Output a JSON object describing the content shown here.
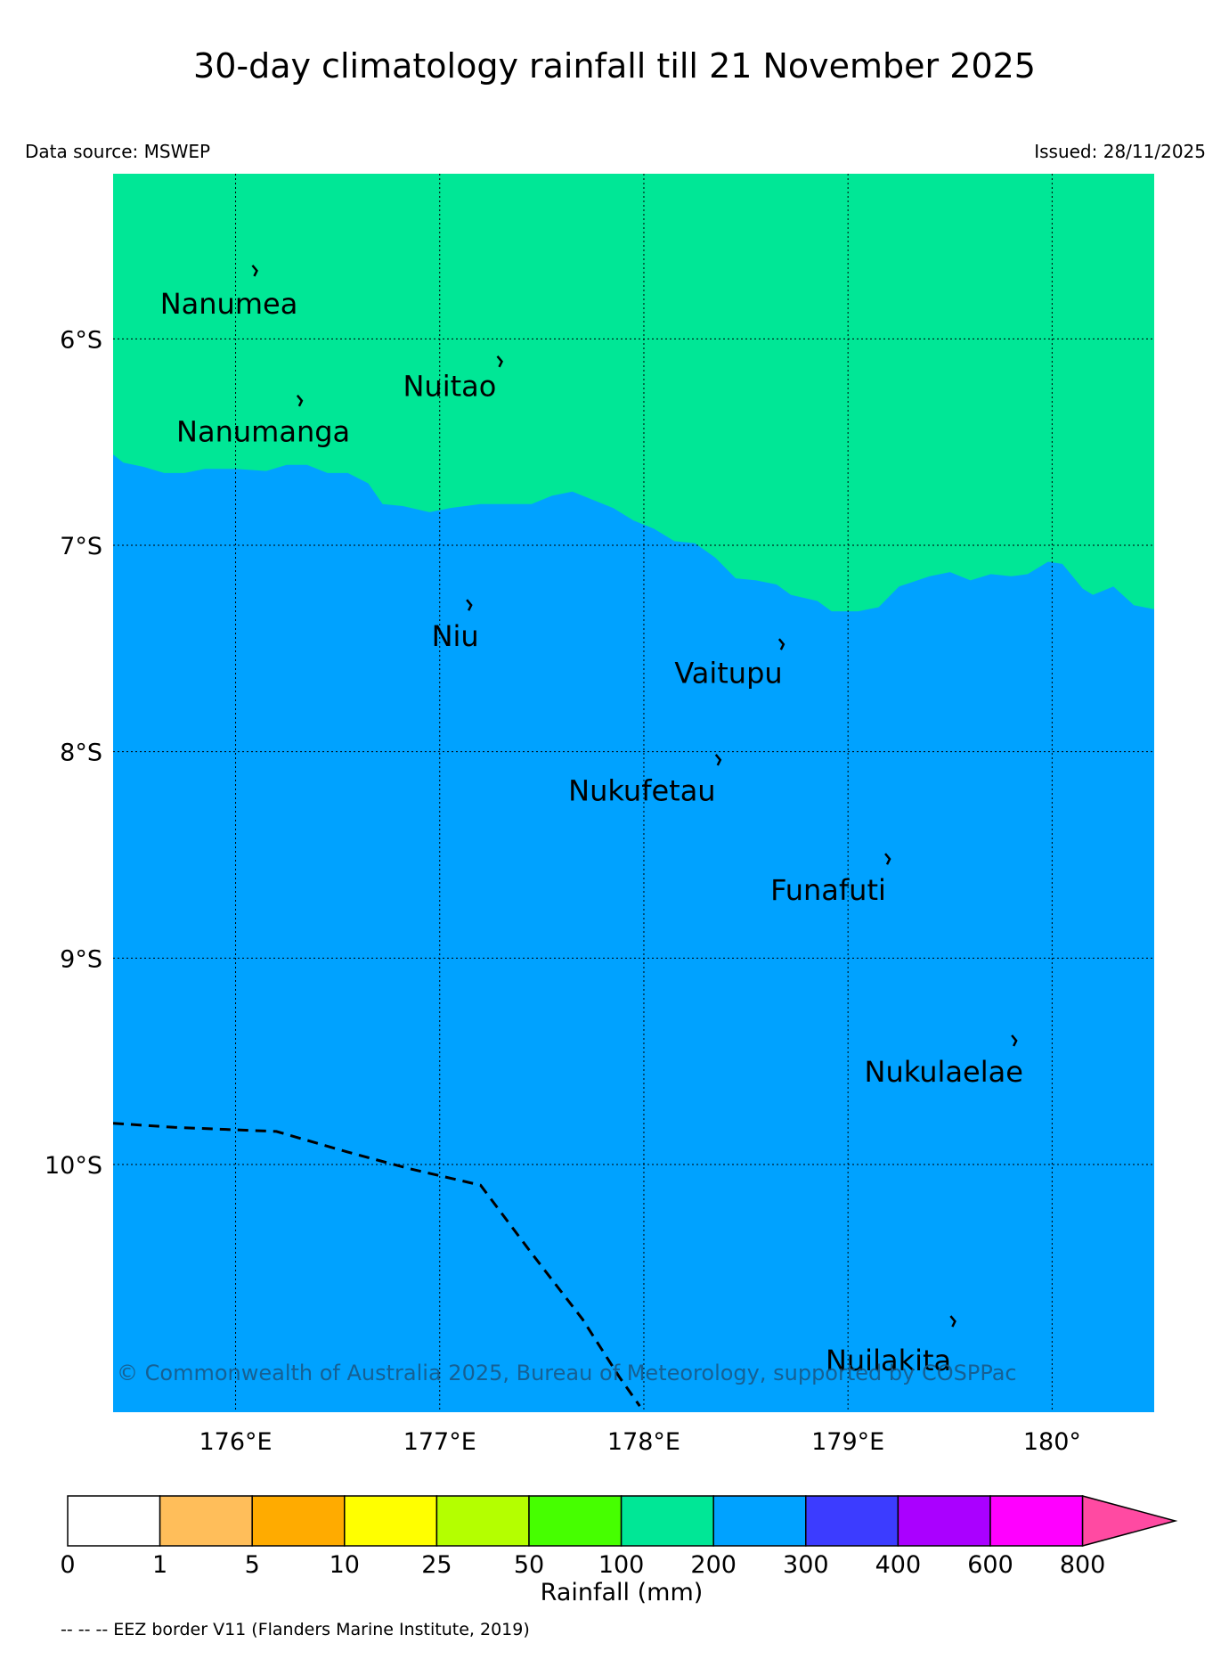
{
  "title": "30-day climatology rainfall till 21 November 2025",
  "data_source": "Data source: MSWEP",
  "issued": "Issued: 28/11/2025",
  "copyright": "© Commonwealth of Australia 2025, Bureau of Meteorology, supported by COSPPac",
  "eez_note": "-- -- -- EEZ border V11 (Flanders Marine Institute, 2019)",
  "map": {
    "lon_range": [
      175.4,
      180.5
    ],
    "lat_range": [
      -5.2,
      -11.2
    ],
    "lon_ticks": [
      {
        "value": 176,
        "label": "176°E"
      },
      {
        "value": 177,
        "label": "177°E"
      },
      {
        "value": 178,
        "label": "178°E"
      },
      {
        "value": 179,
        "label": "179°E"
      },
      {
        "value": 180,
        "label": "180°"
      }
    ],
    "lat_ticks": [
      {
        "value": -6,
        "label": "6°S"
      },
      {
        "value": -7,
        "label": "7°S"
      },
      {
        "value": -8,
        "label": "8°S"
      },
      {
        "value": -9,
        "label": "9°S"
      },
      {
        "value": -10,
        "label": "10°S"
      }
    ],
    "regions": [
      {
        "category": "100-200",
        "color": "#00e796"
      },
      {
        "category": "200-300",
        "color": "#00a2ff"
      }
    ],
    "boundary_100_200_vs_200_300": [
      [
        175.4,
        -6.56
      ],
      [
        175.45,
        -6.6
      ],
      [
        175.55,
        -6.62
      ],
      [
        175.65,
        -6.65
      ],
      [
        175.75,
        -6.65
      ],
      [
        175.85,
        -6.63
      ],
      [
        176.0,
        -6.63
      ],
      [
        176.15,
        -6.64
      ],
      [
        176.25,
        -6.61
      ],
      [
        176.35,
        -6.61
      ],
      [
        176.45,
        -6.65
      ],
      [
        176.55,
        -6.65
      ],
      [
        176.65,
        -6.7
      ],
      [
        176.72,
        -6.8
      ],
      [
        176.82,
        -6.81
      ],
      [
        176.95,
        -6.84
      ],
      [
        177.05,
        -6.82
      ],
      [
        177.2,
        -6.8
      ],
      [
        177.35,
        -6.8
      ],
      [
        177.45,
        -6.8
      ],
      [
        177.55,
        -6.76
      ],
      [
        177.65,
        -6.74
      ],
      [
        177.75,
        -6.78
      ],
      [
        177.85,
        -6.82
      ],
      [
        177.95,
        -6.88
      ],
      [
        178.05,
        -6.92
      ],
      [
        178.15,
        -6.98
      ],
      [
        178.25,
        -6.99
      ],
      [
        178.35,
        -7.06
      ],
      [
        178.45,
        -7.16
      ],
      [
        178.55,
        -7.17
      ],
      [
        178.65,
        -7.19
      ],
      [
        178.72,
        -7.24
      ],
      [
        178.85,
        -7.27
      ],
      [
        178.92,
        -7.32
      ],
      [
        179.05,
        -7.32
      ],
      [
        179.15,
        -7.3
      ],
      [
        179.25,
        -7.2
      ],
      [
        179.4,
        -7.15
      ],
      [
        179.5,
        -7.13
      ],
      [
        179.6,
        -7.17
      ],
      [
        179.7,
        -7.14
      ],
      [
        179.8,
        -7.15
      ],
      [
        179.88,
        -7.14
      ],
      [
        179.98,
        -7.08
      ],
      [
        180.05,
        -7.09
      ],
      [
        180.15,
        -7.21
      ],
      [
        180.2,
        -7.24
      ],
      [
        180.25,
        -7.22
      ],
      [
        180.3,
        -7.2
      ],
      [
        180.4,
        -7.29
      ],
      [
        180.5,
        -7.31
      ]
    ],
    "eez_border": [
      [
        175.4,
        -9.8
      ],
      [
        175.7,
        -9.82
      ],
      [
        176.2,
        -9.84
      ],
      [
        176.55,
        -9.94
      ],
      [
        176.85,
        -10.02
      ],
      [
        177.2,
        -10.1
      ],
      [
        177.45,
        -10.43
      ],
      [
        177.7,
        -10.75
      ],
      [
        177.88,
        -11.03
      ],
      [
        177.98,
        -11.17
      ]
    ],
    "islands": [
      {
        "name": "Nanumea",
        "lon": 176.1,
        "lat": -5.67,
        "label_lon": 175.63,
        "label_lat": -5.83
      },
      {
        "name": "Nuitao",
        "lon": 177.3,
        "lat": -6.11,
        "label_lon": 176.82,
        "label_lat": -6.23
      },
      {
        "name": "Nanumanga",
        "lon": 176.32,
        "lat": -6.3,
        "label_lon": 175.71,
        "label_lat": -6.45
      },
      {
        "name": "Niu",
        "lon": 177.15,
        "lat": -7.29,
        "label_lon": 176.96,
        "label_lat": -7.44
      },
      {
        "name": "Vaitupu",
        "lon": 178.68,
        "lat": -7.48,
        "label_lon": 178.15,
        "label_lat": -7.62
      },
      {
        "name": "Nukufetau",
        "lon": 178.37,
        "lat": -8.04,
        "label_lon": 177.63,
        "label_lat": -8.19
      },
      {
        "name": "Funafuti",
        "lon": 179.2,
        "lat": -8.52,
        "label_lon": 178.62,
        "label_lat": -8.67
      },
      {
        "name": "Nukulaelae",
        "lon": 179.82,
        "lat": -9.4,
        "label_lon": 179.08,
        "label_lat": -9.55
      },
      {
        "name": "Nuilakita",
        "lon": 179.52,
        "lat": -10.76,
        "label_lon": 178.89,
        "label_lat": -10.95
      }
    ]
  },
  "legend": {
    "title": "Rainfall (mm)",
    "boundaries": [
      "0",
      "1",
      "5",
      "10",
      "25",
      "50",
      "100",
      "200",
      "300",
      "400",
      "600",
      "800"
    ],
    "colors": [
      "#ffffff",
      "#ffbe5a",
      "#ffab00",
      "#ffff00",
      "#b4ff00",
      "#46ff00",
      "#00e796",
      "#00a2ff",
      "#3c3cff",
      "#aa00ff",
      "#ff00ff"
    ],
    "extend_color": "#ff4aa2"
  }
}
